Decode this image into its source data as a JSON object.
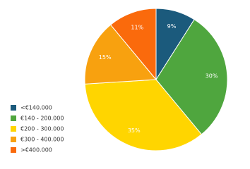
{
  "chart_data": {
    "type": "pie",
    "categories": [
      "<€140.000",
      "€140 - 200.000",
      "€200 - 300.000",
      "€300 - 400.000",
      ">€400.000"
    ],
    "values": [
      9,
      30,
      35,
      15,
      11
    ],
    "value_labels": [
      "9%",
      "30%",
      "35%",
      "15%",
      "11%"
    ],
    "colors": [
      "#1b5a7c",
      "#4fa63e",
      "#ffd500",
      "#f8a10f",
      "#fa6a0c"
    ],
    "legend": "bottom-left"
  }
}
